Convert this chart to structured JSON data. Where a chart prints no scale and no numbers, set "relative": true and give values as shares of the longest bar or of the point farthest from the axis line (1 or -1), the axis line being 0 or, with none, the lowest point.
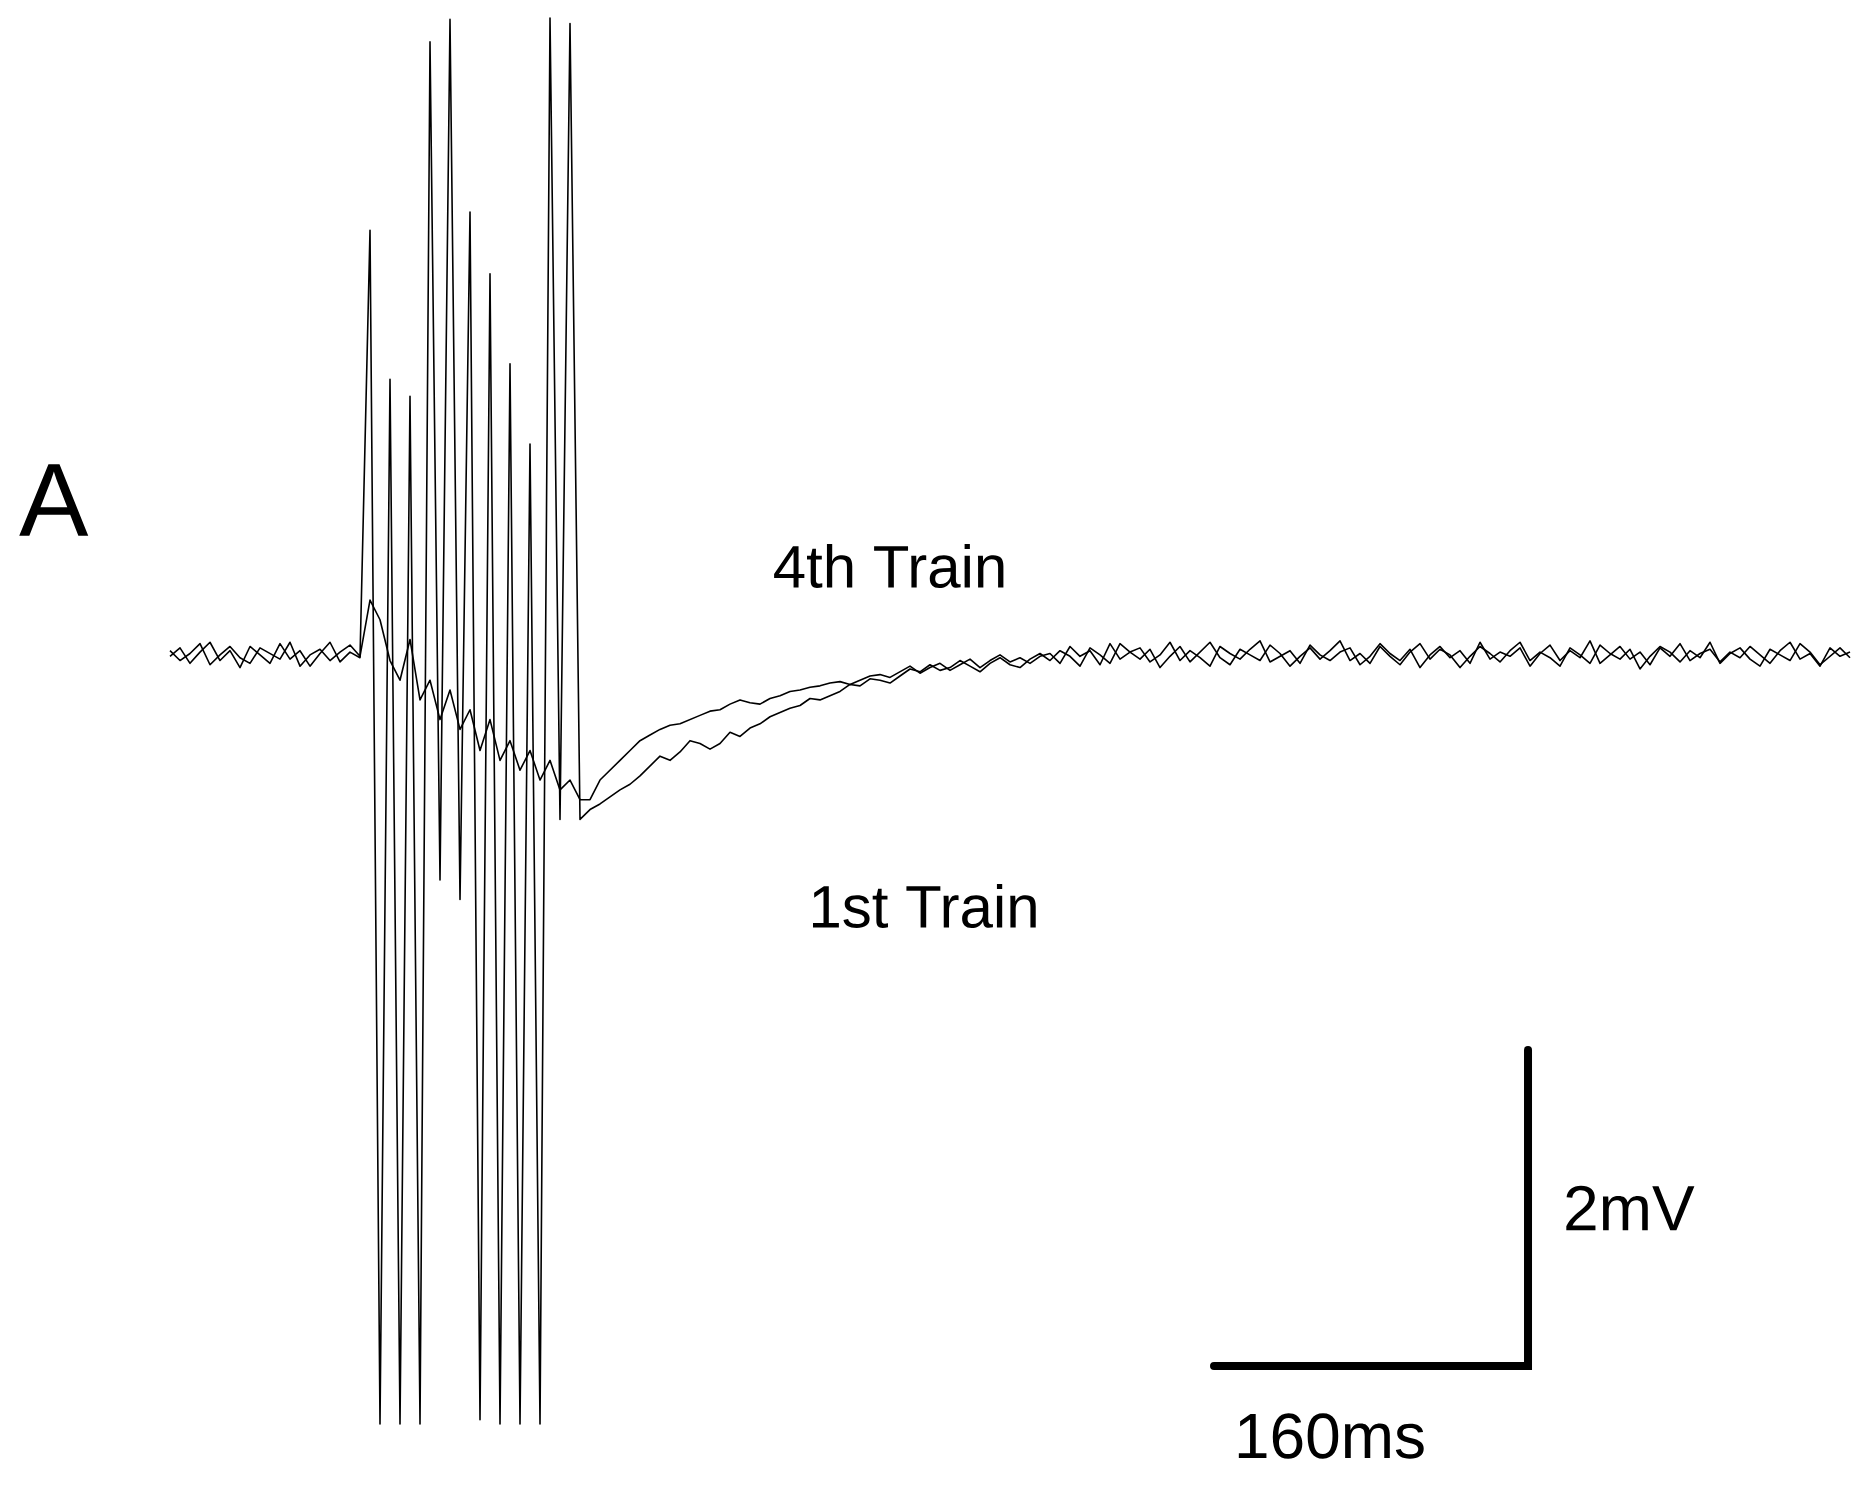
{
  "chart_data": {
    "type": "line",
    "title": "A",
    "relative": true,
    "categories": [
      null,
      null,
      null,
      null,
      null,
      null,
      null,
      null,
      null,
      null,
      null,
      null,
      null,
      null,
      null,
      null,
      null,
      null,
      null,
      null,
      null,
      null,
      null,
      null,
      null,
      null,
      null,
      null,
      null,
      null,
      null,
      null,
      null,
      null,
      null,
      null,
      null,
      null,
      null,
      null,
      null,
      null,
      null,
      null,
      null,
      null,
      null,
      null,
      null,
      null,
      null,
      null,
      null,
      null,
      null,
      null,
      null,
      null,
      null,
      null,
      null,
      null,
      null,
      null,
      null,
      null,
      null,
      null,
      null,
      null,
      null,
      null,
      null,
      null,
      null,
      null,
      null,
      null,
      null,
      null,
      null,
      null,
      null,
      null,
      null,
      null,
      null,
      null,
      null,
      null,
      null,
      null,
      null,
      null,
      null,
      null,
      null,
      null,
      null,
      null,
      null,
      null,
      null,
      null,
      null,
      null,
      null,
      null,
      null,
      null,
      null,
      null,
      null,
      null,
      null,
      null,
      null,
      null,
      null,
      null,
      null,
      null,
      null,
      null,
      null,
      null,
      null,
      null,
      null,
      null,
      null,
      null,
      null,
      null,
      null,
      null,
      null,
      null,
      null,
      null,
      null,
      null,
      null,
      null,
      null,
      null,
      null,
      null,
      null,
      null,
      null,
      null,
      null,
      null,
      null,
      null,
      null,
      null,
      null,
      null,
      null,
      null,
      null,
      null,
      null,
      null,
      null,
      null,
      null
    ],
    "series": [
      {
        "name": "1st Train",
        "color": "#000000",
        "values": [
          0.546,
          0.552,
          0.541,
          0.549,
          0.556,
          0.543,
          0.55,
          0.538,
          0.553,
          0.547,
          0.541,
          0.555,
          0.544,
          0.55,
          0.539,
          0.548,
          0.556,
          0.542,
          0.549,
          0.545,
          0.849,
          0,
          0.743,
          0,
          0.731,
          0,
          0.983,
          0.387,
          0.999,
          0.373,
          0.862,
          0.003,
          0.818,
          0,
          0.754,
          0,
          0.697,
          0,
          1,
          0.43,
          0.996,
          0.43,
          0.437,
          0.441,
          0.446,
          0.451,
          0.455,
          0.461,
          0.468,
          0.475,
          0.472,
          0.478,
          0.486,
          0.484,
          0.48,
          0.484,
          0.492,
          0.489,
          0.495,
          0.498,
          0.503,
          0.506,
          0.509,
          0.511,
          0.516,
          0.515,
          0.518,
          0.521,
          0.526,
          0.525,
          0.53,
          0.529,
          0.527,
          0.532,
          0.537,
          0.535,
          0.54,
          0.536,
          0.538,
          0.543,
          0.539,
          0.535,
          0.541,
          0.545,
          0.54,
          0.538,
          0.544,
          0.548,
          0.543,
          0.55,
          0.546,
          0.539,
          0.552,
          0.547,
          0.541,
          0.555,
          0.549,
          0.544,
          0.551,
          0.538,
          0.546,
          0.553,
          0.542,
          0.549,
          0.556,
          0.545,
          0.54,
          0.551,
          0.547,
          0.543,
          0.554,
          0.548,
          0.539,
          0.546,
          0.552,
          0.544,
          0.55,
          0.557,
          0.543,
          0.548,
          0.541,
          0.553,
          0.546,
          0.54,
          0.549,
          0.555,
          0.544,
          0.551,
          0.547,
          0.538,
          0.546,
          0.553,
          0.548,
          0.542,
          0.55,
          0.556,
          0.543,
          0.549,
          0.545,
          0.539,
          0.552,
          0.547,
          0.541,
          0.554,
          0.548,
          0.544,
          0.551,
          0.537,
          0.546,
          0.553,
          0.549,
          0.542,
          0.55,
          0.545,
          0.556,
          0.541,
          0.548,
          0.552,
          0.544,
          0.539,
          0.551,
          0.547,
          0.543,
          0.555,
          0.549,
          0.54,
          0.546,
          0.552,
          0.545
        ]
      },
      {
        "name": "4th Train",
        "color": "#000000",
        "values": [
          0.55,
          0.543,
          0.548,
          0.555,
          0.54,
          0.547,
          0.553,
          0.545,
          0.541,
          0.552,
          0.548,
          0.544,
          0.556,
          0.539,
          0.547,
          0.551,
          0.543,
          0.549,
          0.554,
          0.546,
          0.586,
          0.572,
          0.543,
          0.529,
          0.558,
          0.515,
          0.529,
          0.501,
          0.522,
          0.494,
          0.508,
          0.479,
          0.501,
          0.472,
          0.486,
          0.465,
          0.479,
          0.458,
          0.472,
          0.451,
          0.458,
          0.444,
          0.444,
          0.458,
          0.465,
          0.472,
          0.479,
          0.486,
          0.49,
          0.494,
          0.497,
          0.498,
          0.501,
          0.504,
          0.507,
          0.508,
          0.512,
          0.515,
          0.513,
          0.512,
          0.516,
          0.518,
          0.521,
          0.522,
          0.524,
          0.525,
          0.527,
          0.528,
          0.526,
          0.529,
          0.532,
          0.533,
          0.531,
          0.535,
          0.539,
          0.534,
          0.538,
          0.541,
          0.536,
          0.54,
          0.544,
          0.538,
          0.543,
          0.547,
          0.542,
          0.545,
          0.541,
          0.546,
          0.548,
          0.541,
          0.553,
          0.546,
          0.55,
          0.54,
          0.555,
          0.544,
          0.549,
          0.552,
          0.542,
          0.547,
          0.556,
          0.543,
          0.55,
          0.545,
          0.539,
          0.553,
          0.548,
          0.544,
          0.551,
          0.557,
          0.542,
          0.546,
          0.55,
          0.541,
          0.554,
          0.547,
          0.543,
          0.549,
          0.552,
          0.54,
          0.546,
          0.555,
          0.548,
          0.543,
          0.551,
          0.538,
          0.547,
          0.553,
          0.545,
          0.55,
          0.541,
          0.556,
          0.544,
          0.549,
          0.546,
          0.552,
          0.539,
          0.548,
          0.554,
          0.543,
          0.55,
          0.545,
          0.557,
          0.541,
          0.547,
          0.553,
          0.544,
          0.549,
          0.54,
          0.552,
          0.546,
          0.555,
          0.543,
          0.548,
          0.551,
          0.542,
          0.549,
          0.545,
          0.553,
          0.547,
          0.541,
          0.55,
          0.556,
          0.544,
          0.548,
          0.539,
          0.552,
          0.546,
          0.549
        ]
      }
    ],
    "annotations": [
      "2mV",
      "160ms"
    ]
  }
}
